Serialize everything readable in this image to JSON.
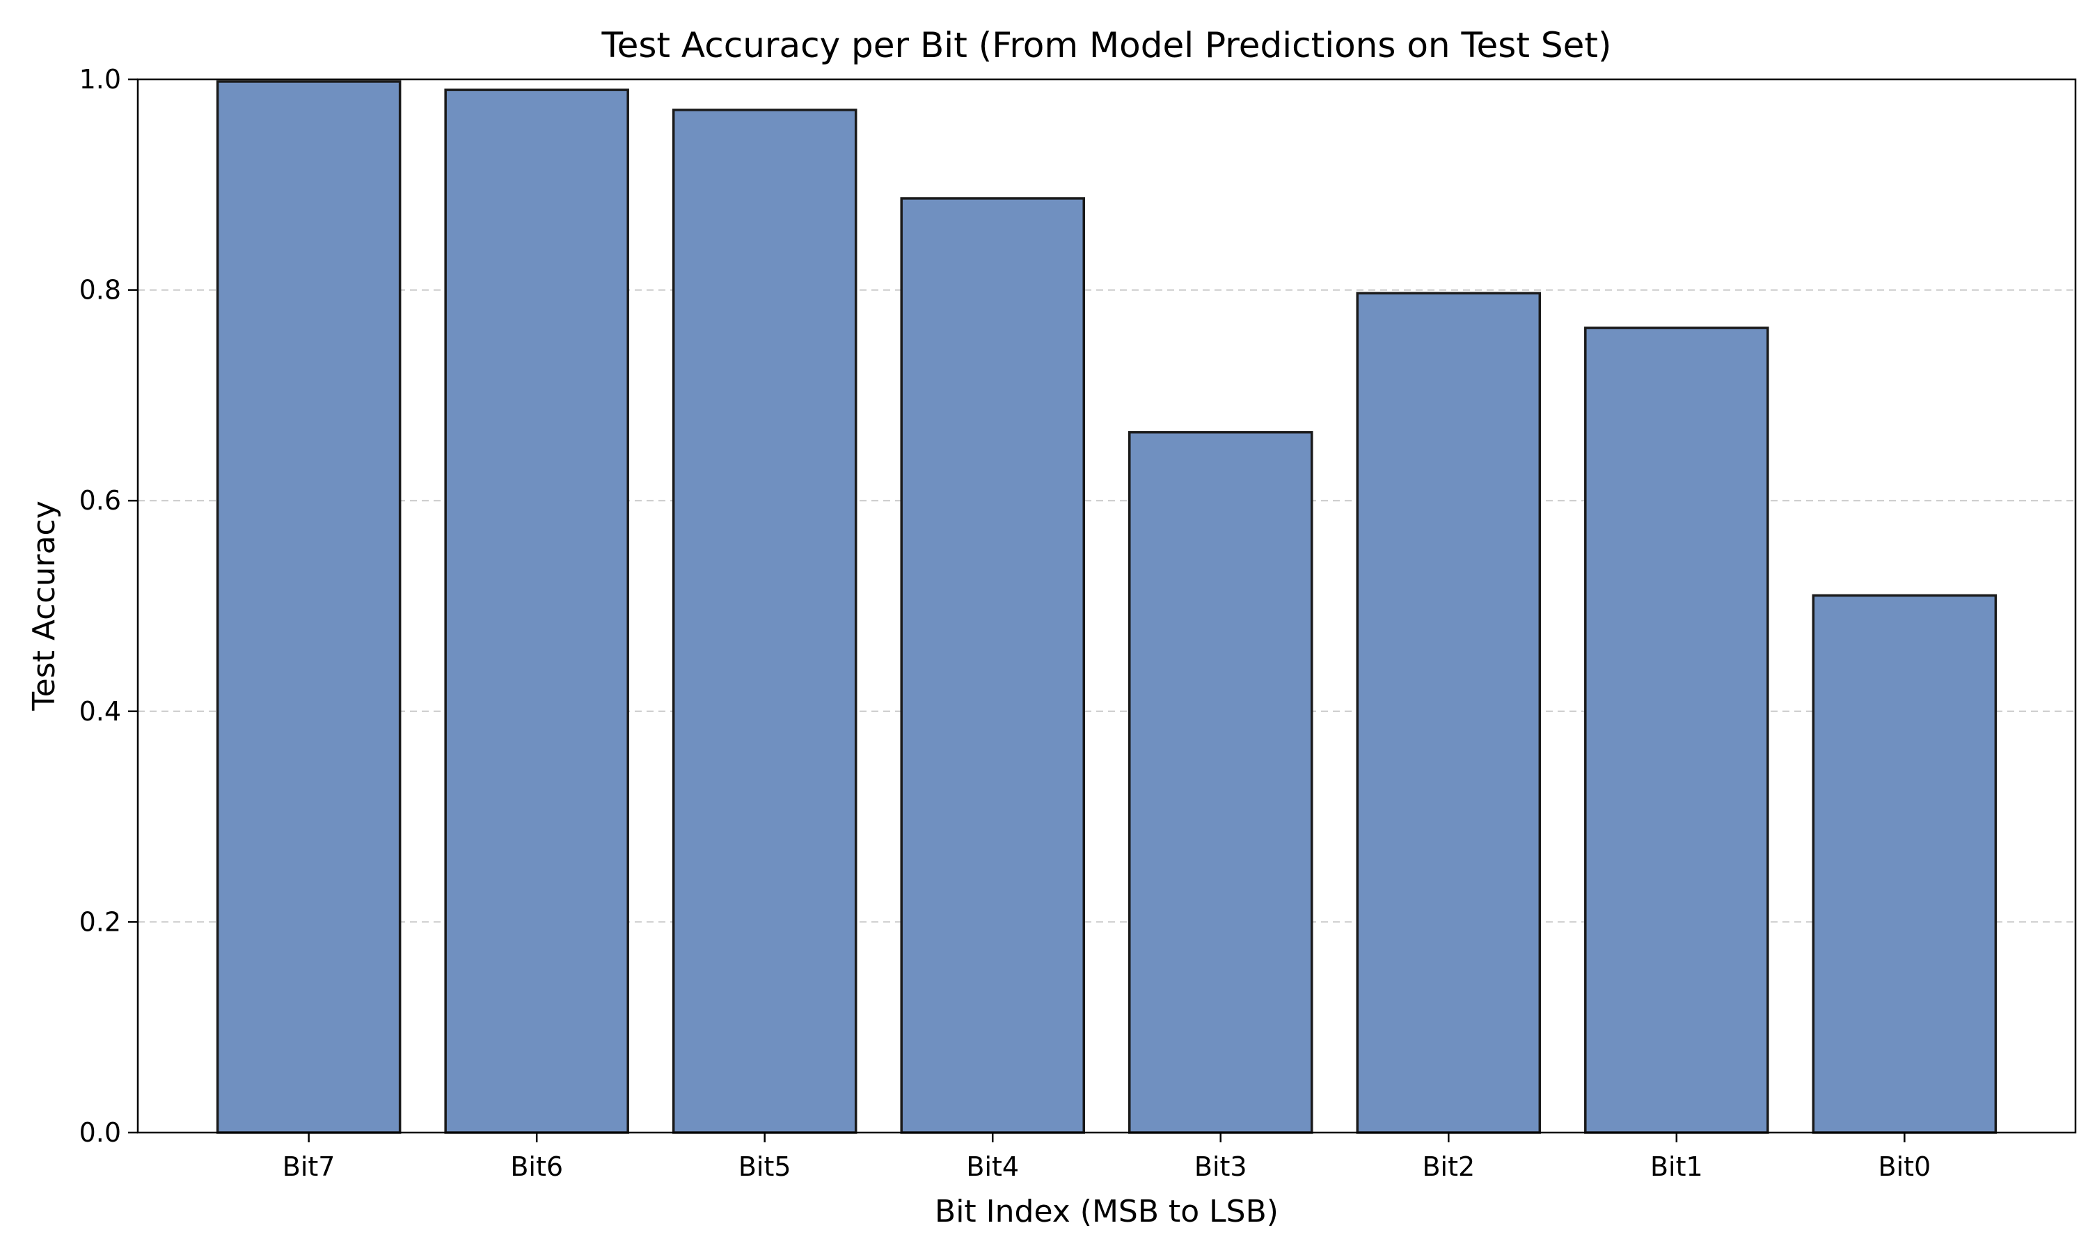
{
  "chart_data": {
    "type": "bar",
    "title": "Test Accuracy per Bit (From Model Predictions on Test Set)",
    "xlabel": "Bit Index (MSB to LSB)",
    "ylabel": "Test Accuracy",
    "categories": [
      "Bit7",
      "Bit6",
      "Bit5",
      "Bit4",
      "Bit3",
      "Bit2",
      "Bit1",
      "Bit0"
    ],
    "values": [
      0.998,
      0.99,
      0.971,
      0.887,
      0.665,
      0.797,
      0.764,
      0.51
    ],
    "ylim": [
      0,
      1.0
    ],
    "yticks": [
      0.0,
      0.2,
      0.4,
      0.6,
      0.8,
      1.0
    ],
    "ytick_labels": [
      "0.0",
      "0.2",
      "0.4",
      "0.6",
      "0.8",
      "1.0"
    ],
    "grid": "y-dashed",
    "legend": "none",
    "colors": {
      "bar_fill": "#7090c0",
      "bar_edge": "#1a1a1a",
      "grid": "#c8c8c8"
    }
  }
}
